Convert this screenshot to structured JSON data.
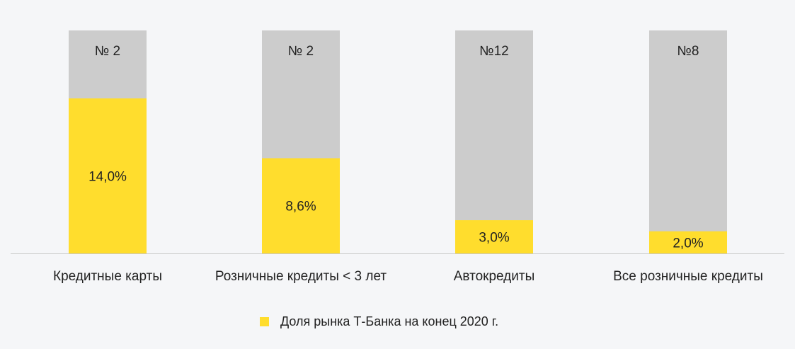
{
  "chart_data": {
    "type": "bar",
    "stacked_to_full": true,
    "categories": [
      "Кредитные карты",
      "Розничные кредиты < 3 лет",
      "Автокредиты",
      "Все розничные кредиты"
    ],
    "series": [
      {
        "name": "Доля рынка Т-Банка на конец 2020 г.",
        "values": [
          14.0,
          8.6,
          3.0,
          2.0
        ],
        "value_labels": [
          "14,0%",
          "8,6%",
          "3,0%",
          "2,0%"
        ]
      }
    ],
    "rank_labels": [
      "№ 2",
      "№ 2",
      "№12",
      "№8"
    ],
    "legend_position": "bottom",
    "grid": false,
    "colors": {
      "share": "#ffdd2d",
      "remainder": "#cccccc",
      "axis": "#c8c8c8",
      "text": "#222222"
    }
  }
}
